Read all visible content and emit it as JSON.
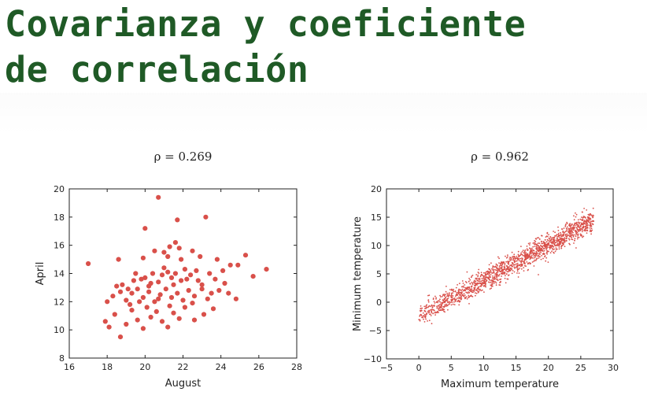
{
  "slide": {
    "title_line1": "Covarianza y coeficiente",
    "title_line2": "de correlación",
    "title_color": "#1f5a26"
  },
  "chart_data": [
    {
      "type": "scatter",
      "title": "ρ = 0.269",
      "xlabel": "August",
      "ylabel": "April",
      "xlim": [
        16,
        28
      ],
      "ylim": [
        8,
        20
      ],
      "xticks": [
        16,
        18,
        20,
        22,
        24,
        26,
        28
      ],
      "yticks": [
        8,
        10,
        12,
        14,
        16,
        18,
        20
      ],
      "grid": false,
      "color": "#d9504a",
      "points": [
        [
          20.7,
          19.4
        ],
        [
          23.2,
          18.0
        ],
        [
          20.0,
          17.2
        ],
        [
          21.7,
          17.8
        ],
        [
          17.0,
          14.7
        ],
        [
          18.6,
          15.0
        ],
        [
          21.6,
          16.2
        ],
        [
          21.3,
          15.9
        ],
        [
          21.8,
          15.8
        ],
        [
          20.5,
          15.6
        ],
        [
          22.5,
          15.6
        ],
        [
          21.0,
          15.5
        ],
        [
          21.2,
          15.2
        ],
        [
          22.9,
          15.2
        ],
        [
          25.3,
          15.3
        ],
        [
          19.9,
          15.1
        ],
        [
          21.9,
          15.0
        ],
        [
          23.8,
          15.0
        ],
        [
          18.8,
          13.2
        ],
        [
          19.1,
          12.9
        ],
        [
          19.5,
          14.0
        ],
        [
          19.8,
          13.6
        ],
        [
          20.2,
          13.1
        ],
        [
          20.4,
          14.0
        ],
        [
          20.7,
          13.4
        ],
        [
          21.0,
          14.4
        ],
        [
          21.2,
          14.1
        ],
        [
          21.4,
          13.7
        ],
        [
          21.6,
          14.0
        ],
        [
          21.9,
          13.5
        ],
        [
          22.1,
          14.3
        ],
        [
          22.4,
          13.9
        ],
        [
          22.7,
          14.2
        ],
        [
          23.0,
          13.2
        ],
        [
          23.4,
          14.0
        ],
        [
          23.7,
          13.6
        ],
        [
          24.1,
          14.2
        ],
        [
          24.5,
          14.6
        ],
        [
          24.9,
          14.6
        ],
        [
          25.7,
          13.8
        ],
        [
          26.4,
          14.3
        ],
        [
          18.0,
          12.0
        ],
        [
          18.3,
          12.4
        ],
        [
          18.7,
          12.7
        ],
        [
          19.0,
          12.1
        ],
        [
          19.3,
          12.6
        ],
        [
          19.6,
          12.9
        ],
        [
          19.9,
          12.3
        ],
        [
          20.2,
          12.7
        ],
        [
          20.5,
          12.0
        ],
        [
          20.8,
          12.5
        ],
        [
          21.1,
          12.9
        ],
        [
          21.4,
          12.3
        ],
        [
          21.7,
          12.6
        ],
        [
          22.0,
          12.1
        ],
        [
          22.3,
          12.8
        ],
        [
          22.6,
          12.4
        ],
        [
          23.0,
          12.9
        ],
        [
          23.3,
          12.2
        ],
        [
          23.9,
          12.8
        ],
        [
          24.4,
          12.6
        ],
        [
          24.8,
          12.2
        ],
        [
          17.9,
          10.6
        ],
        [
          18.1,
          10.2
        ],
        [
          18.4,
          11.1
        ],
        [
          18.7,
          9.5
        ],
        [
          19.0,
          10.4
        ],
        [
          19.3,
          11.4
        ],
        [
          19.6,
          10.7
        ],
        [
          19.9,
          10.1
        ],
        [
          20.3,
          10.9
        ],
        [
          20.6,
          11.3
        ],
        [
          20.9,
          10.6
        ],
        [
          21.2,
          10.2
        ],
        [
          21.5,
          11.2
        ],
        [
          21.8,
          10.8
        ],
        [
          22.1,
          11.6
        ],
        [
          22.6,
          10.7
        ],
        [
          23.1,
          11.1
        ],
        [
          23.6,
          11.5
        ],
        [
          20.0,
          13.7
        ],
        [
          20.3,
          13.3
        ],
        [
          20.9,
          13.9
        ],
        [
          21.5,
          13.2
        ],
        [
          22.2,
          13.6
        ],
        [
          22.8,
          13.5
        ],
        [
          19.4,
          13.5
        ],
        [
          18.5,
          13.1
        ],
        [
          21.3,
          11.7
        ],
        [
          20.1,
          11.6
        ],
        [
          22.5,
          11.9
        ],
        [
          19.2,
          11.8
        ],
        [
          23.5,
          12.6
        ],
        [
          24.2,
          13.3
        ],
        [
          19.7,
          12.0
        ],
        [
          20.7,
          12.2
        ]
      ]
    },
    {
      "type": "scatter",
      "title": "ρ = 0.962",
      "xlabel": "Maximum temperature",
      "ylabel": "Minimum temperature",
      "xlim": [
        -5,
        30
      ],
      "ylim": [
        -10,
        20
      ],
      "xticks": [
        -5,
        0,
        5,
        10,
        15,
        20,
        25,
        30
      ],
      "yticks": [
        -10,
        -5,
        0,
        5,
        10,
        15,
        20
      ],
      "grid": false,
      "color": "#d9504a",
      "trend": {
        "slope": 0.63,
        "intercept": -2.5,
        "spread": 1.6,
        "x_range": [
          0,
          27
        ],
        "count": 1600
      }
    }
  ]
}
